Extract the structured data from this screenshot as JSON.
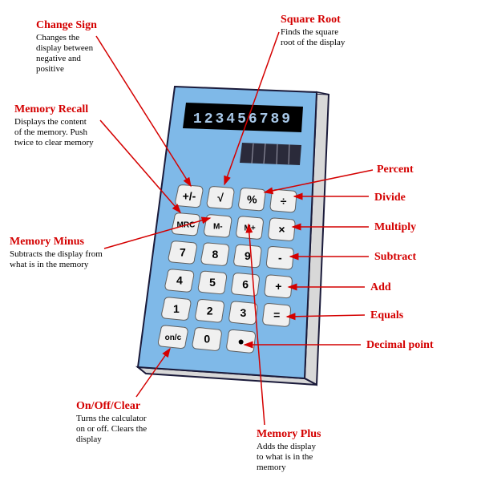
{
  "display_value": "123456789",
  "colors": {
    "body": "#7fb9e8",
    "body_stroke": "#1a1a3a",
    "side": "#d8d8d8",
    "display_bg": "#000000",
    "display_text": "#a8c8e8",
    "solar_bg": "#2a2a3a",
    "solar_line": "#a0a0b0",
    "button_fill": "#f0f0f0",
    "button_stroke": "#606060",
    "callout": "#d40000"
  },
  "buttons": {
    "r1": [
      {
        "id": "sign",
        "label": "+/-"
      },
      {
        "id": "sqrt",
        "label": "√"
      },
      {
        "id": "percent",
        "label": "%"
      },
      {
        "id": "divide",
        "label": "÷"
      }
    ],
    "r2": [
      {
        "id": "mrc",
        "label": "MRC",
        "small": true
      },
      {
        "id": "mminus",
        "label": "M-",
        "small": true
      },
      {
        "id": "mplus",
        "label": "M+",
        "small": true
      },
      {
        "id": "multiply",
        "label": "×"
      }
    ],
    "r3": [
      {
        "id": "7",
        "label": "7"
      },
      {
        "id": "8",
        "label": "8"
      },
      {
        "id": "9",
        "label": "9"
      },
      {
        "id": "subtract",
        "label": "-"
      }
    ],
    "r4": [
      {
        "id": "4",
        "label": "4"
      },
      {
        "id": "5",
        "label": "5"
      },
      {
        "id": "6",
        "label": "6"
      },
      {
        "id": "add",
        "label": "+"
      }
    ],
    "r5": [
      {
        "id": "1",
        "label": "1"
      },
      {
        "id": "2",
        "label": "2"
      },
      {
        "id": "3",
        "label": "3"
      },
      {
        "id": "equals",
        "label": "="
      }
    ],
    "r6": [
      {
        "id": "onc",
        "label": "on/c",
        "small": true
      },
      {
        "id": "0",
        "label": "0"
      },
      {
        "id": "dot",
        "label": "●"
      }
    ]
  },
  "callouts": {
    "change_sign": {
      "title": "Change Sign",
      "desc": [
        "Changes the",
        "display between",
        "negative and",
        "positive"
      ]
    },
    "memory_recall": {
      "title": "Memory Recall",
      "desc": [
        "Displays the content",
        "of the memory. Push",
        "twice to clear memory"
      ]
    },
    "memory_minus": {
      "title": "Memory Minus",
      "desc": [
        "Subtracts the display from",
        "what is in the memory"
      ]
    },
    "on_off": {
      "title": "On/Off/Clear",
      "desc": [
        "Turns the calculator",
        "on or off. Clears the",
        "display"
      ]
    },
    "square_root": {
      "title": "Square Root",
      "desc": [
        "Finds the square",
        "root of the display"
      ]
    },
    "percent": {
      "title": "Percent",
      "desc": []
    },
    "divide": {
      "title": "Divide",
      "desc": []
    },
    "multiply": {
      "title": "Multiply",
      "desc": []
    },
    "subtract": {
      "title": "Subtract",
      "desc": []
    },
    "add": {
      "title": "Add",
      "desc": []
    },
    "equals": {
      "title": "Equals",
      "desc": []
    },
    "decimal": {
      "title": "Decimal point",
      "desc": []
    },
    "memory_plus": {
      "title": "Memory Plus",
      "desc": [
        "Adds the display",
        "to what is in the",
        "memory"
      ]
    }
  }
}
